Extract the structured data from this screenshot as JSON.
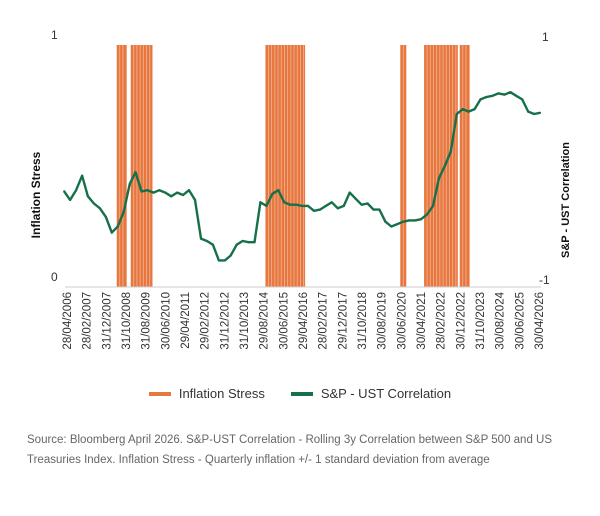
{
  "chart_data": {
    "type": "line",
    "left_axis": {
      "label": "Inflation Stress",
      "min_label": "0",
      "max_label": "1",
      "ylim": [
        0,
        1
      ]
    },
    "right_axis": {
      "label": "S&P - UST Correlation",
      "min_label": "-1",
      "max_label": "1",
      "ylim": [
        -1,
        1
      ]
    },
    "x_tick_labels": [
      "28/04/2006",
      "28/02/2007",
      "31/12/2007",
      "31/10/2008",
      "31/08/2009",
      "30/06/2010",
      "29/04/2011",
      "29/02/2012",
      "31/12/2012",
      "31/10/2013",
      "29/08/2014",
      "30/06/2015",
      "29/04/2016",
      "28/02/2017",
      "29/12/2017",
      "31/10/2018",
      "30/08/2019",
      "30/06/2020",
      "30/04/2021",
      "28/02/2022",
      "30/12/2022",
      "31/10/2023",
      "30/08/2024",
      "30/06/2025",
      "30/04/2026"
    ],
    "x_range": [
      "2006-04-28",
      "2026-04-30"
    ],
    "series": [
      {
        "name": "Inflation Stress",
        "kind": "bar",
        "color": "#e8773f",
        "periods": [
          [
            "2008-06-30",
            "2008-11-30"
          ],
          [
            "2009-01-31",
            "2009-12-31"
          ],
          [
            "2014-09-30",
            "2016-05-31"
          ],
          [
            "2020-05-31",
            "2020-08-31"
          ],
          [
            "2021-05-31",
            "2022-10-31"
          ],
          [
            "2022-11-30",
            "2023-04-30"
          ]
        ]
      },
      {
        "name": "S&P - UST Correlation",
        "kind": "line",
        "color": "#16704a",
        "x": [
          "2006-04",
          "2006-07",
          "2006-10",
          "2007-01",
          "2007-04",
          "2007-07",
          "2007-10",
          "2008-01",
          "2008-04",
          "2008-07",
          "2008-10",
          "2009-01",
          "2009-04",
          "2009-07",
          "2009-10",
          "2010-01",
          "2010-04",
          "2010-07",
          "2010-10",
          "2011-01",
          "2011-04",
          "2011-07",
          "2011-10",
          "2012-01",
          "2012-04",
          "2012-07",
          "2012-10",
          "2013-01",
          "2013-04",
          "2013-07",
          "2013-10",
          "2014-01",
          "2014-04",
          "2014-07",
          "2014-10",
          "2015-01",
          "2015-04",
          "2015-07",
          "2015-10",
          "2016-01",
          "2016-04",
          "2016-07",
          "2016-10",
          "2017-01",
          "2017-04",
          "2017-07",
          "2017-10",
          "2018-01",
          "2018-04",
          "2018-07",
          "2018-10",
          "2019-01",
          "2019-04",
          "2019-07",
          "2019-10",
          "2020-01",
          "2020-04",
          "2020-07",
          "2020-10",
          "2021-01",
          "2021-04",
          "2021-07",
          "2021-10",
          "2022-01",
          "2022-04",
          "2022-07",
          "2022-10",
          "2023-01",
          "2023-04",
          "2023-07",
          "2023-10",
          "2024-01",
          "2024-04",
          "2024-07",
          "2024-10",
          "2025-01",
          "2025-04",
          "2025-07",
          "2025-10",
          "2026-01",
          "2026-04"
        ],
        "values": [
          -0.21,
          -0.28,
          -0.2,
          -0.08,
          -0.25,
          -0.31,
          -0.35,
          -0.42,
          -0.55,
          -0.5,
          -0.38,
          -0.15,
          -0.05,
          -0.21,
          -0.2,
          -0.22,
          -0.2,
          -0.22,
          -0.25,
          -0.22,
          -0.24,
          -0.2,
          -0.28,
          -0.6,
          -0.62,
          -0.65,
          -0.78,
          -0.78,
          -0.74,
          -0.65,
          -0.62,
          -0.63,
          -0.63,
          -0.3,
          -0.33,
          -0.23,
          -0.2,
          -0.3,
          -0.32,
          -0.32,
          -0.33,
          -0.33,
          -0.37,
          -0.36,
          -0.33,
          -0.3,
          -0.35,
          -0.33,
          -0.22,
          -0.27,
          -0.32,
          -0.31,
          -0.36,
          -0.36,
          -0.46,
          -0.5,
          -0.48,
          -0.46,
          -0.45,
          -0.45,
          -0.44,
          -0.4,
          -0.33,
          -0.1,
          0.0,
          0.12,
          0.43,
          0.47,
          0.45,
          0.47,
          0.55,
          0.57,
          0.58,
          0.6,
          0.59,
          0.61,
          0.58,
          0.55,
          0.45,
          0.43,
          0.44
        ]
      }
    ],
    "grid": false
  },
  "source_text": "Source: Bloomberg April 2026. S&P-UST Correlation - Rolling 3y Correlation between S&P 500 and US Treasuries Index. Inflation Stress - Quarterly inflation +/- 1 standard deviation from average"
}
